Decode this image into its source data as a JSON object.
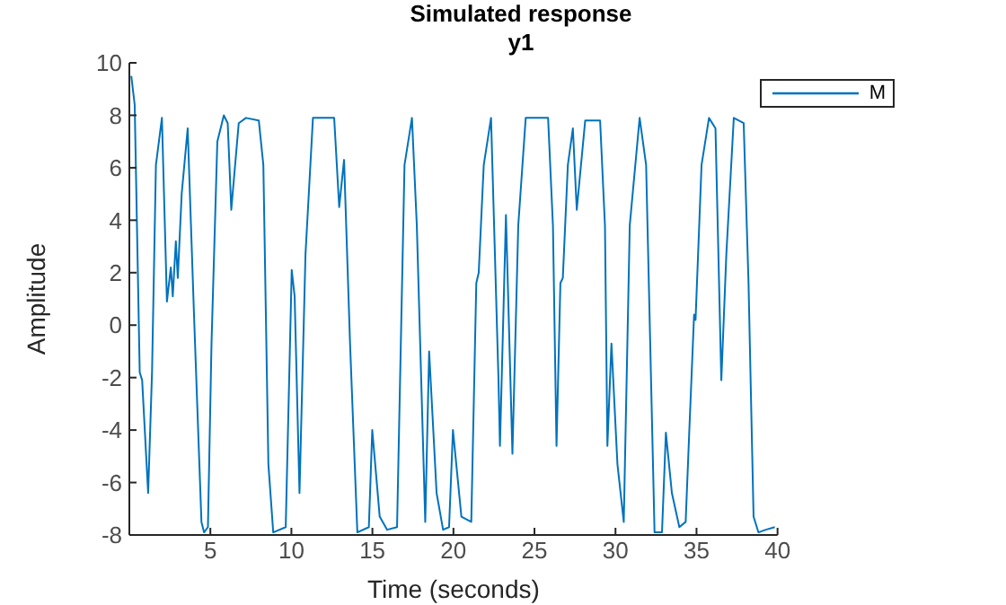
{
  "chart_data": {
    "type": "line",
    "title": "Simulated response",
    "subtitle": "y1",
    "xlabel": "Time (seconds)",
    "ylabel": "Amplitude",
    "xlim": [
      0,
      40
    ],
    "xticks": [
      5,
      10,
      15,
      20,
      25,
      30,
      35,
      40
    ],
    "ylim": [
      -8,
      10
    ],
    "yticks": [
      -8,
      -6,
      -4,
      -2,
      0,
      2,
      4,
      6,
      8,
      10
    ],
    "legend": "top right",
    "marker": "none",
    "line_style": "solid",
    "x": [
      0.12,
      0.33,
      0.64,
      0.79,
      1.16,
      1.4,
      1.64,
      2.01,
      2.32,
      2.56,
      2.68,
      2.87,
      2.99,
      3.23,
      3.6,
      3.99,
      4.45,
      4.61,
      4.85,
      5.07,
      5.43,
      5.83,
      6.07,
      6.29,
      6.75,
      7.2,
      7.99,
      8.27,
      8.58,
      8.88,
      9.65,
      10.02,
      10.2,
      10.5,
      10.87,
      11.33,
      12.64,
      12.95,
      13.25,
      13.62,
      14.07,
      14.78,
      14.99,
      15.45,
      15.91,
      16.52,
      16.98,
      17.44,
      17.74,
      18.26,
      18.5,
      18.96,
      19.36,
      19.73,
      19.97,
      20.49,
      21.1,
      21.41,
      21.56,
      21.87,
      22.32,
      22.78,
      22.87,
      23.24,
      23.64,
      24.0,
      24.46,
      25.84,
      26.14,
      26.36,
      26.6,
      26.75,
      27.06,
      27.37,
      27.61,
      28.13,
      29.05,
      29.35,
      29.5,
      29.75,
      30.12,
      30.51,
      30.88,
      31.49,
      31.89,
      32.41,
      32.87,
      33.11,
      33.48,
      33.94,
      34.33,
      34.55,
      34.85,
      34.94,
      35.31,
      35.77,
      36.17,
      36.53,
      36.84,
      37.3,
      37.91,
      38.21,
      38.52,
      38.82,
      39.28,
      39.83
    ],
    "series": [
      {
        "name": "M",
        "color": "#0072bd",
        "values": [
          9.5,
          8.4,
          -1.8,
          -2.1,
          -6.4,
          -1.8,
          6.1,
          7.9,
          0.9,
          2.2,
          1.1,
          3.2,
          1.8,
          5,
          7.5,
          0.4,
          -7.5,
          -7.9,
          -7.7,
          -0.7,
          7,
          8,
          7.7,
          4.4,
          7.7,
          7.9,
          7.8,
          6.1,
          -5.3,
          -7.9,
          -7.7,
          2.1,
          1.1,
          -6.4,
          2.7,
          7.9,
          7.9,
          4.5,
          6.3,
          -0.7,
          -7.9,
          -7.7,
          -4,
          -7.3,
          -7.8,
          -7.7,
          6.1,
          7.9,
          3.8,
          -7.5,
          -1,
          -6.4,
          -7.8,
          -7.7,
          -4,
          -7.3,
          -7.5,
          1.6,
          2,
          6.1,
          7.9,
          -2.1,
          -4.6,
          4.2,
          -4.9,
          3.8,
          7.9,
          7.9,
          3.8,
          -4.6,
          1.6,
          1.8,
          6.1,
          7.5,
          4.4,
          7.8,
          7.8,
          3.8,
          -4.6,
          -0.7,
          -5.3,
          -7.5,
          3.8,
          7.9,
          6.1,
          -7.9,
          -7.9,
          -4.1,
          -6.4,
          -7.7,
          -7.5,
          -4.1,
          0.4,
          0.2,
          6.1,
          7.9,
          7.5,
          -2.1,
          2.7,
          7.9,
          7.7,
          1.6,
          -7.3,
          -7.9,
          -7.8,
          -7.7
        ]
      }
    ]
  }
}
